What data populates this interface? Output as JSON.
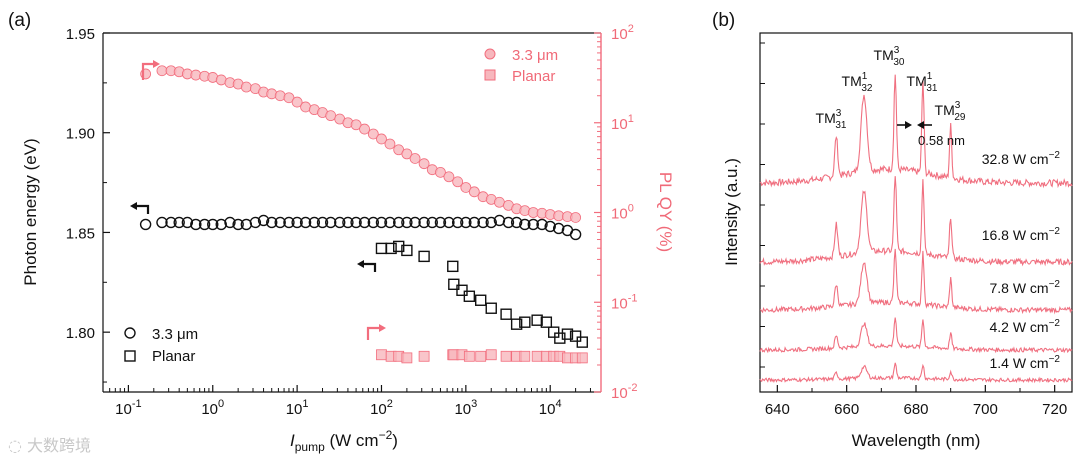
{
  "chart_data": [
    {
      "panel": "(a)",
      "type": "scatter",
      "title": "",
      "xlabel": "I",
      "xlabel_sub": "pump",
      "xlabel_unit": " (W cm",
      "xlabel_sup": "−2",
      "xlabel_close": ")",
      "x_scale": "log",
      "xlim": [
        0.05,
        40000
      ],
      "x_ticks": [
        {
          "v": 0.1,
          "b": "10",
          "e": "-1"
        },
        {
          "v": 1,
          "b": "10",
          "e": "0"
        },
        {
          "v": 10,
          "b": "10",
          "e": "1"
        },
        {
          "v": 100,
          "b": "10",
          "e": "2"
        },
        {
          "v": 1000,
          "b": "10",
          "e": "3"
        },
        {
          "v": 10000,
          "b": "10",
          "e": "4"
        }
      ],
      "ylabel_left": "Photon energy (eV)",
      "ylim_left": [
        1.77,
        1.95
      ],
      "y_ticks_left": [
        "1.80",
        "1.85",
        "1.90",
        "1.95"
      ],
      "ylabel_right": "PL QY (%)",
      "ylim_right": [
        0.01,
        100
      ],
      "y_ticks_right": [
        {
          "v": 0.01,
          "b": "10",
          "e": "-2"
        },
        {
          "v": 0.1,
          "b": "10",
          "e": "-1"
        },
        {
          "v": 1,
          "b": "10",
          "e": "0"
        },
        {
          "v": 10,
          "b": "10",
          "e": "1"
        },
        {
          "v": 100,
          "b": "10",
          "e": "2"
        }
      ],
      "legend_left": {
        "position": "bottom-left",
        "entries": [
          "3.3 μm",
          "Planar"
        ]
      },
      "legend_right": {
        "position": "top-right",
        "entries": [
          "3.3 μm",
          "Planar"
        ]
      },
      "colors": {
        "energy": "#111111",
        "qy": "#f26d7d",
        "qy_fill": "#f7b7bd"
      },
      "series": [
        {
          "name": "3.3 μm photon energy",
          "axis": "left",
          "marker": "circle-open",
          "x": [
            0.16,
            0.25,
            0.32,
            0.4,
            0.5,
            0.63,
            0.8,
            1,
            1.26,
            1.6,
            2,
            2.5,
            3.2,
            4,
            5,
            6.3,
            8,
            10,
            12.6,
            16,
            20,
            25,
            32,
            40,
            50,
            63,
            80,
            100,
            126,
            160,
            200,
            250,
            320,
            400,
            500,
            630,
            800,
            1000,
            1260,
            1600,
            2000,
            2500,
            3200,
            4000,
            5000,
            6300,
            8000,
            10000,
            12600,
            16000,
            20000
          ],
          "y": [
            1.854,
            1.855,
            1.855,
            1.855,
            1.855,
            1.854,
            1.854,
            1.854,
            1.854,
            1.855,
            1.854,
            1.854,
            1.855,
            1.856,
            1.855,
            1.855,
            1.855,
            1.855,
            1.855,
            1.855,
            1.855,
            1.855,
            1.855,
            1.855,
            1.855,
            1.855,
            1.855,
            1.855,
            1.855,
            1.855,
            1.855,
            1.855,
            1.855,
            1.855,
            1.855,
            1.855,
            1.855,
            1.855,
            1.855,
            1.855,
            1.855,
            1.856,
            1.855,
            1.855,
            1.854,
            1.854,
            1.854,
            1.853,
            1.852,
            1.851,
            1.849
          ]
        },
        {
          "name": "Planar photon energy",
          "axis": "left",
          "marker": "square-open",
          "x": [
            100,
            130,
            160,
            200,
            320,
            700,
            720,
            900,
            1100,
            1500,
            2000,
            3000,
            4000,
            5000,
            7000,
            9000,
            11000,
            13000,
            16000,
            20000,
            24000
          ],
          "y": [
            1.842,
            1.842,
            1.843,
            1.841,
            1.838,
            1.833,
            1.824,
            1.821,
            1.818,
            1.816,
            1.812,
            1.809,
            1.804,
            1.805,
            1.806,
            1.805,
            1.8,
            1.797,
            1.799,
            1.798,
            1.795
          ]
        },
        {
          "name": "3.3 μm PL QY",
          "axis": "right",
          "marker": "circle-filled",
          "x": [
            0.16,
            0.25,
            0.32,
            0.4,
            0.5,
            0.63,
            0.8,
            1,
            1.26,
            1.6,
            2,
            2.5,
            3.2,
            4,
            5,
            6.3,
            8,
            10,
            12.6,
            16,
            20,
            25,
            32,
            40,
            50,
            63,
            80,
            100,
            126,
            160,
            200,
            250,
            320,
            400,
            500,
            630,
            800,
            1000,
            1260,
            1600,
            2000,
            2500,
            3200,
            4000,
            5000,
            6300,
            8000,
            10000,
            12600,
            16000,
            20000
          ],
          "y": [
            35,
            38,
            38,
            37,
            35,
            34,
            33,
            32,
            30,
            28,
            27,
            25,
            24,
            22,
            21,
            20,
            19,
            17,
            15,
            14,
            13,
            12,
            11,
            10,
            9.5,
            8.5,
            7.5,
            6.6,
            5.8,
            5,
            4.5,
            4,
            3.5,
            3,
            2.8,
            2.5,
            2.2,
            1.9,
            1.7,
            1.5,
            1.4,
            1.3,
            1.2,
            1.1,
            1.05,
            1,
            0.98,
            0.95,
            0.92,
            0.9,
            0.88
          ]
        },
        {
          "name": "Planar PL QY",
          "axis": "right",
          "marker": "square-filled",
          "x": [
            100,
            130,
            160,
            200,
            320,
            700,
            720,
            900,
            1100,
            1500,
            2000,
            3000,
            4000,
            5000,
            7000,
            9000,
            11000,
            13000,
            16000,
            20000,
            24000
          ],
          "y": [
            0.026,
            0.025,
            0.025,
            0.024,
            0.025,
            0.026,
            0.026,
            0.026,
            0.025,
            0.025,
            0.026,
            0.025,
            0.025,
            0.025,
            0.025,
            0.025,
            0.025,
            0.025,
            0.024,
            0.024,
            0.024
          ]
        }
      ]
    },
    {
      "panel": "(b)",
      "type": "line",
      "title": "",
      "xlabel": "Wavelength (nm)",
      "ylabel": "Intensity (a.u.)",
      "xlim": [
        635,
        725
      ],
      "x_ticks": [
        "640",
        "660",
        "680",
        "700",
        "720"
      ],
      "line_color": "#f07080",
      "peaks": [
        {
          "wavelength": 657,
          "base": "TM",
          "sub": "31",
          "sup": "3"
        },
        {
          "wavelength": 665,
          "base": "TM",
          "sub": "32",
          "sup": "1"
        },
        {
          "wavelength": 674,
          "base": "TM",
          "sub": "30",
          "sup": "3"
        },
        {
          "wavelength": 682,
          "base": "TM",
          "sub": "31",
          "sup": "1"
        },
        {
          "wavelength": 690,
          "base": "TM",
          "sub": "29",
          "sup": "3"
        }
      ],
      "peak_spacing_label": "0.58 nm",
      "traces": [
        {
          "label": "32.8 W cm",
          "label_sup": "−2",
          "scale": 1.0
        },
        {
          "label": "16.8 W cm",
          "label_sup": "−2",
          "scale": 0.8
        },
        {
          "label": "7.8 W cm",
          "label_sup": "−2",
          "scale": 0.55
        },
        {
          "label": "4.2 W cm",
          "label_sup": "−2",
          "scale": 0.3
        },
        {
          "label": "1.4 W cm",
          "label_sup": "−2",
          "scale": 0.15
        }
      ]
    }
  ],
  "watermark": "大数跨境"
}
